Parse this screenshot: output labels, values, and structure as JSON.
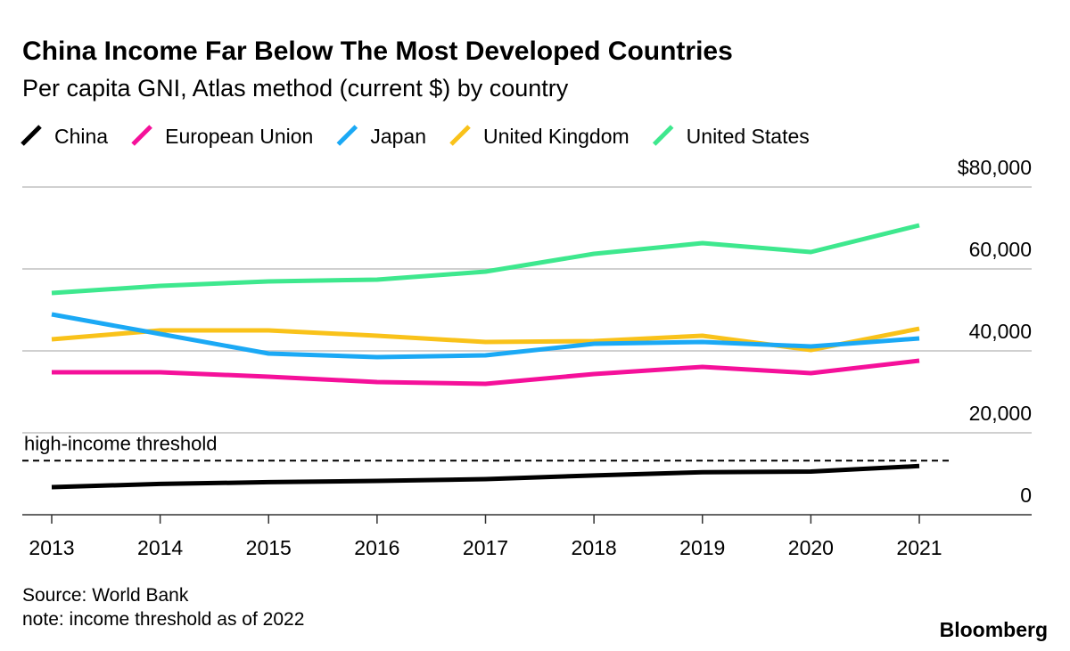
{
  "chart_data": {
    "type": "line",
    "title": "China Income Far Below The Most Developed Countries",
    "subtitle": "Per capita GNI, Atlas method (current $) by country",
    "categories": [
      "2013",
      "2014",
      "2015",
      "2016",
      "2017",
      "2018",
      "2019",
      "2020",
      "2021"
    ],
    "series": [
      {
        "name": "China",
        "color": "#000000",
        "values": [
          6740,
          7520,
          7950,
          8250,
          8690,
          9600,
          10390,
          10550,
          11890
        ]
      },
      {
        "name": "European Union",
        "color": "#f5109a",
        "values": [
          34780,
          34780,
          33700,
          32400,
          31960,
          34350,
          36090,
          34570,
          37610
        ]
      },
      {
        "name": "Japan",
        "color": "#1ba9f5",
        "values": [
          48910,
          44130,
          39350,
          38480,
          38910,
          41740,
          42170,
          41090,
          43040
        ]
      },
      {
        "name": "United Kingdom",
        "color": "#f9c21a",
        "values": [
          42830,
          45000,
          45000,
          43700,
          42170,
          42390,
          43700,
          40220,
          45430
        ]
      },
      {
        "name": "United States",
        "color": "#3ee88e",
        "values": [
          54130,
          55870,
          56960,
          57390,
          59350,
          63700,
          66300,
          64130,
          70650
        ]
      }
    ],
    "threshold": {
      "label": "high-income threshold",
      "value": 13205
    },
    "ylim": [
      0,
      80000
    ],
    "yticks": [
      0,
      {
        "value": 20000,
        "label": "20,000"
      },
      {
        "value": 40000,
        "label": "40,000"
      },
      {
        "value": 60000,
        "label": "60,000"
      },
      {
        "value": 80000,
        "label": "$80,000"
      }
    ],
    "grid": true,
    "source": "Source: World Bank",
    "note": "note: income threshold as of 2022",
    "brand": "Bloomberg"
  }
}
